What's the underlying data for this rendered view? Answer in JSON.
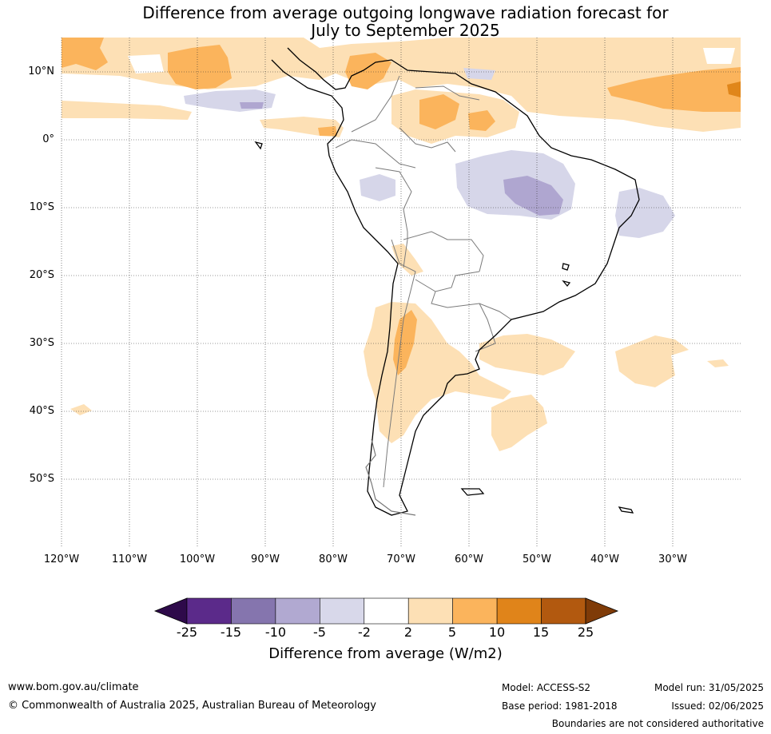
{
  "title": {
    "line1": "Difference from average outgoing longwave radiation forecast for",
    "line2": "July to September 2025"
  },
  "map": {
    "lat_labels": [
      "10°N",
      "0°",
      "10°S",
      "20°S",
      "30°S",
      "40°S",
      "50°S"
    ],
    "lon_labels": [
      "120°W",
      "110°W",
      "100°W",
      "90°W",
      "80°W",
      "70°W",
      "60°W",
      "50°W",
      "40°W",
      "30°W"
    ],
    "colors": {
      "land_outline": "#000000",
      "borders": "#7a7a7a",
      "grid": "#333333",
      "light_purple": "#d6d6e9",
      "mid_purple": "#afa6d0",
      "light_orange": "#fde0b5",
      "mid_orange": "#fbb45c",
      "dark_orange": "#e0861a"
    }
  },
  "colorbar": {
    "ticks": [
      "-25",
      "-15",
      "-10",
      "-5",
      "-2",
      "2",
      "5",
      "10",
      "15",
      "25"
    ],
    "colors": [
      "#2e0a4a",
      "#5b2a8a",
      "#8575ae",
      "#b1a9d1",
      "#d8d8ea",
      "#ffffff",
      "#fde0b5",
      "#fbb45c",
      "#e0841a",
      "#b2590f",
      "#7f3b08"
    ],
    "label": "Difference from average (W/m2)"
  },
  "footer": {
    "website": "www.bom.gov.au/climate",
    "copyright": "© Commonwealth of Australia 2025, Australian Bureau of Meteorology",
    "model": "Model: ACCESS-S2",
    "model_run": "Model run: 31/05/2025",
    "base_period": "Base period: 1981-2018",
    "issued": "Issued: 02/06/2025",
    "disclaimer": "Boundaries are not considered authoritative"
  }
}
